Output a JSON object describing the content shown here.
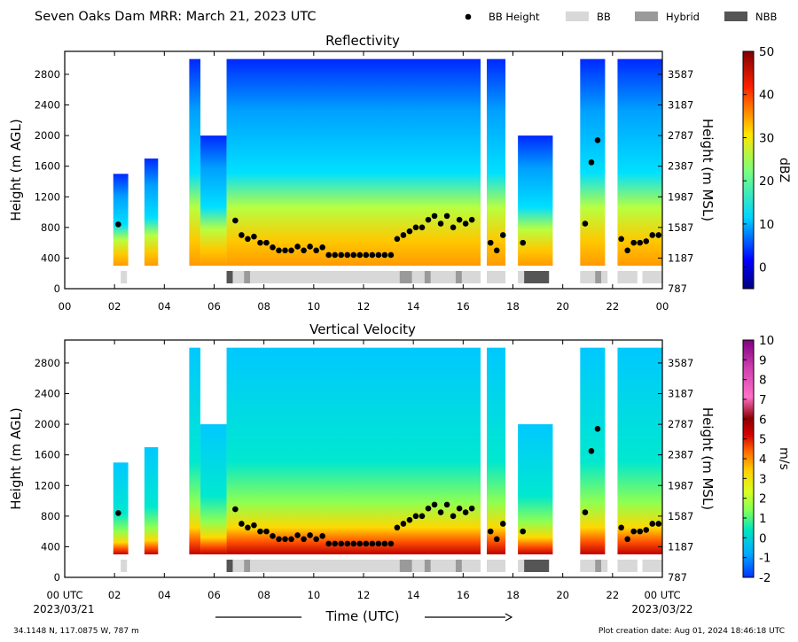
{
  "title": "Seven Oaks Dam MRR:  March 21, 2023 UTC",
  "legend": [
    {
      "label": "BB Height",
      "kind": "marker",
      "color": "#000000"
    },
    {
      "label": "BB",
      "kind": "swatch",
      "color": "#d8d8d8"
    },
    {
      "label": "Hybrid",
      "kind": "swatch",
      "color": "#9a9a9a"
    },
    {
      "label": "NBB",
      "kind": "swatch",
      "color": "#555555"
    }
  ],
  "footer": {
    "location": "34.1148 N, 117.0875 W, 787 m",
    "created": "Plot creation date: Aug 01, 2024 18:46:18 UTC",
    "xlabel": "Time (UTC)",
    "start_date": "2023/03/21",
    "end_date": "2023/03/22"
  },
  "chart_data": [
    {
      "type": "heatmap",
      "title": "Reflectivity",
      "ylabel": "Height (m AGL)",
      "ylabel_right": "Height (m MSL)",
      "colorbar_label": "dBZ",
      "colorbar_range": [
        -5,
        50
      ],
      "colorbar_ticks": [
        "0",
        "10",
        "20",
        "30",
        "40",
        "50"
      ],
      "ylim": [
        0,
        3100
      ],
      "yticks_left": [
        "0",
        "400",
        "800",
        "1200",
        "1600",
        "2000",
        "2400",
        "2800"
      ],
      "yticks_right": [
        "787",
        "1187",
        "1587",
        "1987",
        "2387",
        "2787",
        "3187",
        "3587"
      ],
      "xlim_hours": [
        0,
        24
      ],
      "xticks": [
        "00",
        "02",
        "04",
        "06",
        "08",
        "10",
        "12",
        "14",
        "16",
        "18",
        "20",
        "22",
        "00"
      ]
    },
    {
      "type": "heatmap",
      "title": "Vertical Velocity",
      "ylabel": "Height (m AGL)",
      "ylabel_right": "Height (m MSL)",
      "colorbar_label": "m/s",
      "colorbar_range": [
        -2,
        10
      ],
      "colorbar_ticks": [
        "-2",
        "-1",
        "0",
        "1",
        "2",
        "3",
        "4",
        "5",
        "6",
        "7",
        "8",
        "9",
        "10"
      ],
      "ylim": [
        0,
        3100
      ],
      "yticks_left": [
        "0",
        "400",
        "800",
        "1200",
        "1600",
        "2000",
        "2400",
        "2800"
      ],
      "yticks_right": [
        "787",
        "1187",
        "1587",
        "1987",
        "2387",
        "2787",
        "3187",
        "3587"
      ],
      "xlim_hours": [
        0,
        24
      ],
      "xticks": [
        "00 UTC",
        "02",
        "04",
        "06",
        "08",
        "10",
        "12",
        "14",
        "16",
        "18",
        "20",
        "22",
        "00 UTC"
      ]
    }
  ],
  "bb_height": [
    {
      "t": 2.15,
      "h": 840
    },
    {
      "t": 6.85,
      "h": 890
    },
    {
      "t": 7.1,
      "h": 700
    },
    {
      "t": 7.35,
      "h": 650
    },
    {
      "t": 7.6,
      "h": 680
    },
    {
      "t": 7.85,
      "h": 600
    },
    {
      "t": 8.1,
      "h": 600
    },
    {
      "t": 8.35,
      "h": 540
    },
    {
      "t": 8.6,
      "h": 500
    },
    {
      "t": 8.85,
      "h": 500
    },
    {
      "t": 9.1,
      "h": 500
    },
    {
      "t": 9.35,
      "h": 550
    },
    {
      "t": 9.6,
      "h": 500
    },
    {
      "t": 9.85,
      "h": 550
    },
    {
      "t": 10.1,
      "h": 500
    },
    {
      "t": 10.35,
      "h": 540
    },
    {
      "t": 10.6,
      "h": 440
    },
    {
      "t": 10.85,
      "h": 440
    },
    {
      "t": 11.1,
      "h": 440
    },
    {
      "t": 11.35,
      "h": 440
    },
    {
      "t": 11.6,
      "h": 440
    },
    {
      "t": 11.85,
      "h": 440
    },
    {
      "t": 12.1,
      "h": 440
    },
    {
      "t": 12.35,
      "h": 440
    },
    {
      "t": 12.6,
      "h": 440
    },
    {
      "t": 12.85,
      "h": 440
    },
    {
      "t": 13.1,
      "h": 440
    },
    {
      "t": 13.35,
      "h": 650
    },
    {
      "t": 13.6,
      "h": 700
    },
    {
      "t": 13.85,
      "h": 750
    },
    {
      "t": 14.1,
      "h": 800
    },
    {
      "t": 14.35,
      "h": 800
    },
    {
      "t": 14.6,
      "h": 900
    },
    {
      "t": 14.85,
      "h": 950
    },
    {
      "t": 15.1,
      "h": 850
    },
    {
      "t": 15.35,
      "h": 950
    },
    {
      "t": 15.6,
      "h": 800
    },
    {
      "t": 15.85,
      "h": 900
    },
    {
      "t": 16.1,
      "h": 850
    },
    {
      "t": 16.35,
      "h": 900
    },
    {
      "t": 17.1,
      "h": 600
    },
    {
      "t": 17.35,
      "h": 500
    },
    {
      "t": 17.6,
      "h": 700
    },
    {
      "t": 18.4,
      "h": 600
    },
    {
      "t": 20.9,
      "h": 850
    },
    {
      "t": 21.15,
      "h": 1650
    },
    {
      "t": 21.4,
      "h": 1940
    },
    {
      "t": 22.35,
      "h": 650
    },
    {
      "t": 22.6,
      "h": 500
    },
    {
      "t": 22.85,
      "h": 600
    },
    {
      "t": 23.1,
      "h": 600
    },
    {
      "t": 23.35,
      "h": 620
    },
    {
      "t": 23.6,
      "h": 700
    },
    {
      "t": 23.85,
      "h": 700
    }
  ],
  "bb_class": [
    {
      "start": 2.25,
      "end": 2.5,
      "class": "BB"
    },
    {
      "start": 6.5,
      "end": 6.75,
      "class": "NBB"
    },
    {
      "start": 6.75,
      "end": 7.2,
      "class": "BB"
    },
    {
      "start": 7.2,
      "end": 7.45,
      "class": "Hybrid"
    },
    {
      "start": 7.45,
      "end": 13.45,
      "class": "BB"
    },
    {
      "start": 13.45,
      "end": 13.95,
      "class": "Hybrid"
    },
    {
      "start": 13.95,
      "end": 14.45,
      "class": "BB"
    },
    {
      "start": 14.45,
      "end": 14.7,
      "class": "Hybrid"
    },
    {
      "start": 14.7,
      "end": 15.7,
      "class": "BB"
    },
    {
      "start": 15.7,
      "end": 15.95,
      "class": "Hybrid"
    },
    {
      "start": 15.95,
      "end": 16.7,
      "class": "BB"
    },
    {
      "start": 16.95,
      "end": 17.7,
      "class": "BB"
    },
    {
      "start": 18.2,
      "end": 18.45,
      "class": "BB"
    },
    {
      "start": 18.45,
      "end": 19.45,
      "class": "NBB"
    },
    {
      "start": 20.7,
      "end": 21.3,
      "class": "BB"
    },
    {
      "start": 21.3,
      "end": 21.55,
      "class": "Hybrid"
    },
    {
      "start": 21.55,
      "end": 21.8,
      "class": "BB"
    },
    {
      "start": 22.2,
      "end": 23.0,
      "class": "BB"
    },
    {
      "start": 23.2,
      "end": 24.0,
      "class": "BB"
    }
  ],
  "echo_columns": [
    {
      "start": 1.95,
      "end": 2.55,
      "top": 1500
    },
    {
      "start": 3.2,
      "end": 3.75,
      "top": 1700
    },
    {
      "start": 5.0,
      "end": 5.45,
      "top": 3000
    },
    {
      "start": 5.45,
      "end": 6.5,
      "top": 2000
    },
    {
      "start": 6.5,
      "end": 16.7,
      "top": 3000
    },
    {
      "start": 16.95,
      "end": 17.7,
      "top": 3000
    },
    {
      "start": 18.2,
      "end": 19.6,
      "top": 2000
    },
    {
      "start": 20.7,
      "end": 21.7,
      "top": 3000
    },
    {
      "start": 22.2,
      "end": 24.0,
      "top": 3000
    }
  ]
}
